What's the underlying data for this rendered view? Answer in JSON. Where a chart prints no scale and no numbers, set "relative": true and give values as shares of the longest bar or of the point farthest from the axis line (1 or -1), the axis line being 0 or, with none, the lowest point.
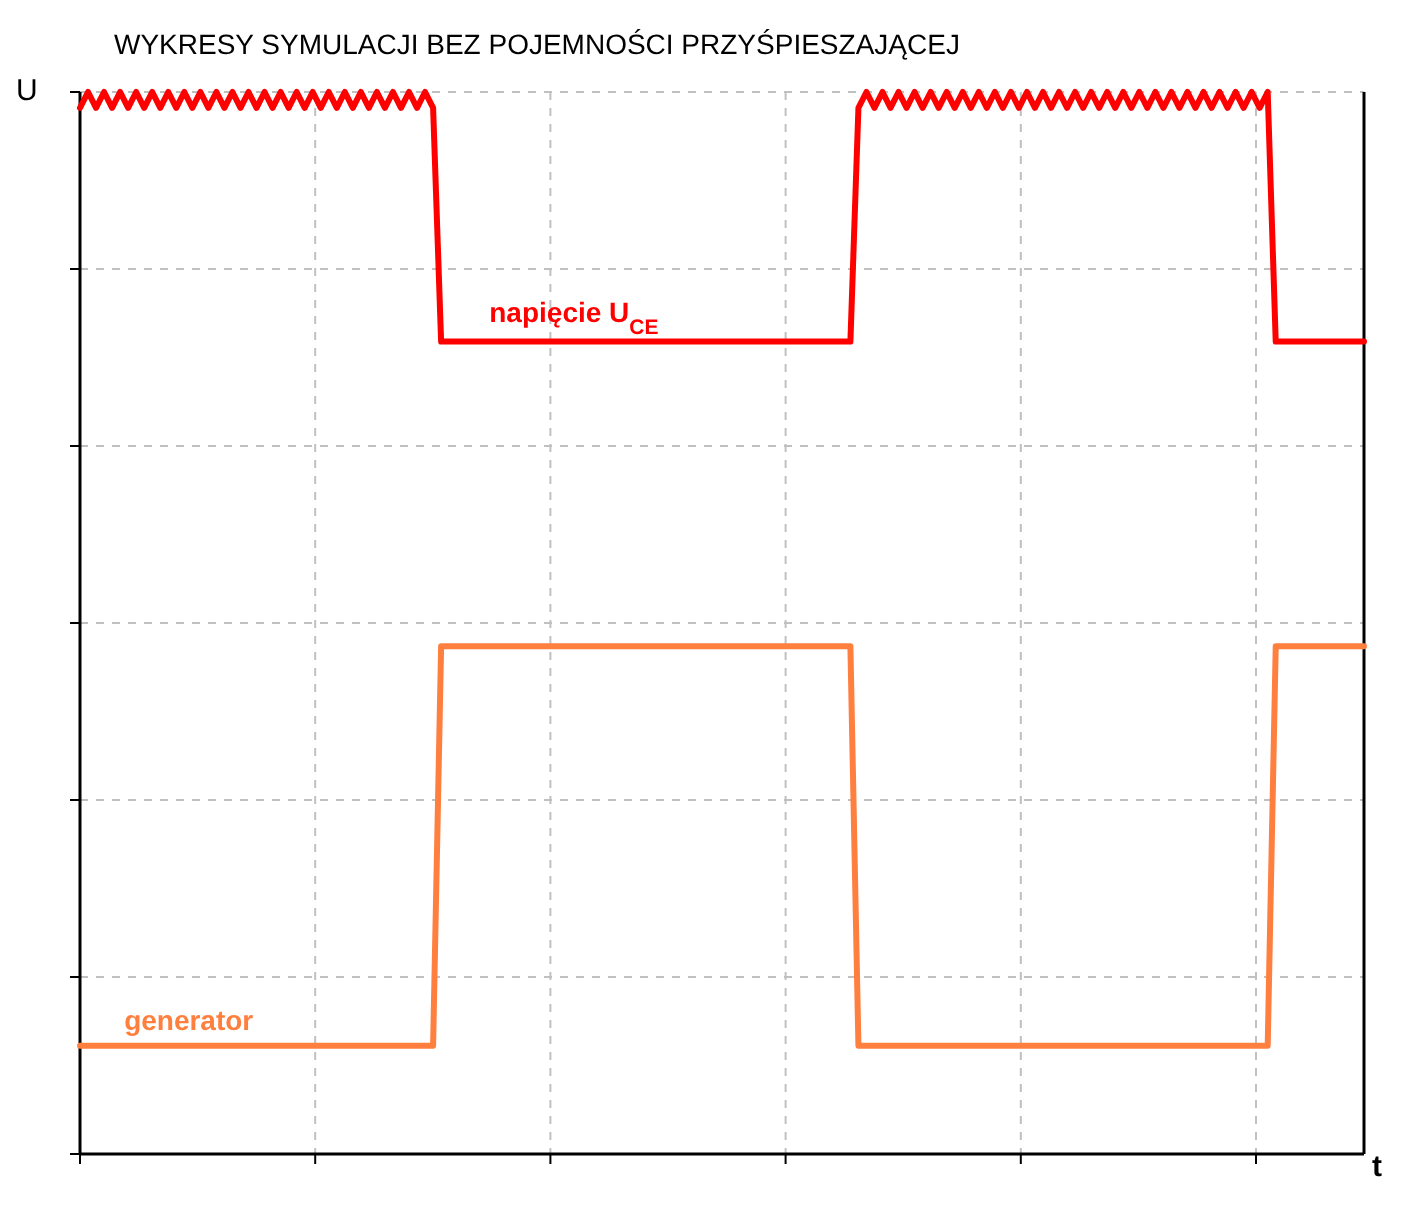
{
  "chart_data": {
    "type": "line",
    "title": "WYKRESY SYMULACJI BEZ POJEMNOŚCI PRZYŚPIESZAJĄCEJ",
    "xlabel": "t",
    "ylabel": "U",
    "relative": true,
    "grid": true,
    "marker": "none",
    "line_style": "solid",
    "categories": [
      null,
      null,
      null,
      null,
      null,
      null,
      null,
      null,
      null,
      null,
      null,
      null,
      null,
      null,
      null,
      null,
      null,
      null,
      null,
      null,
      null,
      null,
      null,
      null,
      null,
      null,
      null,
      null,
      null,
      null,
      null,
      null,
      null,
      null,
      null,
      null,
      null,
      null,
      null,
      null,
      null,
      null,
      null,
      null,
      null,
      null,
      null,
      null,
      null,
      null,
      null,
      null,
      null,
      null,
      null,
      null,
      null,
      null,
      null,
      null,
      null,
      null,
      null,
      null,
      null,
      null,
      null,
      null,
      null,
      null,
      null,
      null,
      null,
      null,
      null,
      null,
      null,
      null,
      null,
      null,
      null,
      null,
      null,
      null,
      null,
      null,
      null,
      null,
      null,
      null,
      null,
      null,
      null,
      null,
      null,
      null,
      null,
      null,
      null,
      null,
      null,
      null,
      null,
      null,
      null,
      null,
      null,
      null,
      null,
      null,
      null,
      null,
      null,
      null,
      null,
      null,
      null,
      null,
      null,
      null,
      null,
      null,
      null,
      null,
      null,
      null,
      null,
      null,
      null,
      null,
      null,
      null,
      null,
      null,
      null,
      null,
      null,
      null,
      null,
      null,
      null,
      null,
      null,
      null,
      null,
      null,
      null,
      null,
      null,
      null,
      null,
      null,
      null,
      null,
      null,
      null,
      null,
      null,
      null,
      null,
      null
    ],
    "series": [
      {
        "name": "napięcie U$_{CE}$",
        "color": "#ff0000",
        "values": [
          0.985,
          1,
          0.985,
          1,
          0.985,
          1,
          0.985,
          1,
          0.985,
          1,
          0.985,
          1,
          0.985,
          1,
          0.985,
          1,
          0.985,
          1,
          0.985,
          1,
          0.985,
          1,
          0.985,
          1,
          0.985,
          1,
          0.985,
          1,
          0.985,
          1,
          0.985,
          1,
          0.985,
          1,
          0.985,
          1,
          0.985,
          1,
          0.985,
          1,
          0.985,
          1,
          0.985,
          1,
          0.985,
          0.765,
          0.765,
          0.765,
          0.765,
          0.765,
          0.765,
          0.765,
          0.765,
          0.765,
          0.765,
          0.765,
          0.765,
          0.765,
          0.765,
          0.765,
          0.765,
          0.765,
          0.765,
          0.765,
          0.765,
          0.765,
          0.765,
          0.765,
          0.765,
          0.765,
          0.765,
          0.765,
          0.765,
          0.765,
          0.765,
          0.765,
          0.765,
          0.765,
          0.765,
          0.765,
          0.765,
          0.765,
          0.765,
          0.765,
          0.765,
          0.765,
          0.765,
          0.765,
          0.765,
          0.765,
          0.765,
          0.765,
          0.765,
          0.765,
          0.765,
          0.765,
          0.765,
          0.985,
          1,
          0.985,
          1,
          0.985,
          1,
          0.985,
          1,
          0.985,
          1,
          0.985,
          1,
          0.985,
          1,
          0.985,
          1,
          0.985,
          1,
          0.985,
          1,
          0.985,
          1,
          0.985,
          1,
          0.985,
          1,
          0.985,
          1,
          0.985,
          1,
          0.985,
          1,
          0.985,
          1,
          0.985,
          1,
          0.985,
          1,
          0.985,
          1,
          0.985,
          1,
          0.985,
          1,
          0.985,
          1,
          0.985,
          1,
          0.985,
          1,
          0.985,
          1,
          0.765,
          0.765,
          0.765,
          0.765,
          0.765,
          0.765,
          0.765,
          0.765,
          0.765,
          0.765,
          0.765,
          0.765
        ]
      },
      {
        "name": "generator",
        "color": "#ff7f3f",
        "values": [
          0.102,
          0.102,
          0.102,
          0.102,
          0.102,
          0.102,
          0.102,
          0.102,
          0.102,
          0.102,
          0.102,
          0.102,
          0.102,
          0.102,
          0.102,
          0.102,
          0.102,
          0.102,
          0.102,
          0.102,
          0.102,
          0.102,
          0.102,
          0.102,
          0.102,
          0.102,
          0.102,
          0.102,
          0.102,
          0.102,
          0.102,
          0.102,
          0.102,
          0.102,
          0.102,
          0.102,
          0.102,
          0.102,
          0.102,
          0.102,
          0.102,
          0.102,
          0.102,
          0.102,
          0.102,
          0.478,
          0.478,
          0.478,
          0.478,
          0.478,
          0.478,
          0.478,
          0.478,
          0.478,
          0.478,
          0.478,
          0.478,
          0.478,
          0.478,
          0.478,
          0.478,
          0.478,
          0.478,
          0.478,
          0.478,
          0.478,
          0.478,
          0.478,
          0.478,
          0.478,
          0.478,
          0.478,
          0.478,
          0.478,
          0.478,
          0.478,
          0.478,
          0.478,
          0.478,
          0.478,
          0.478,
          0.478,
          0.478,
          0.478,
          0.478,
          0.478,
          0.478,
          0.478,
          0.478,
          0.478,
          0.478,
          0.478,
          0.478,
          0.478,
          0.478,
          0.478,
          0.478,
          0.102,
          0.102,
          0.102,
          0.102,
          0.102,
          0.102,
          0.102,
          0.102,
          0.102,
          0.102,
          0.102,
          0.102,
          0.102,
          0.102,
          0.102,
          0.102,
          0.102,
          0.102,
          0.102,
          0.102,
          0.102,
          0.102,
          0.102,
          0.102,
          0.102,
          0.102,
          0.102,
          0.102,
          0.102,
          0.102,
          0.102,
          0.102,
          0.102,
          0.102,
          0.102,
          0.102,
          0.102,
          0.102,
          0.102,
          0.102,
          0.102,
          0.102,
          0.102,
          0.102,
          0.102,
          0.102,
          0.102,
          0.102,
          0.102,
          0.102,
          0.102,
          0.102,
          0.478,
          0.478,
          0.478,
          0.478,
          0.478,
          0.478,
          0.478,
          0.478,
          0.478,
          0.478,
          0.478,
          0.478
        ]
      }
    ]
  }
}
